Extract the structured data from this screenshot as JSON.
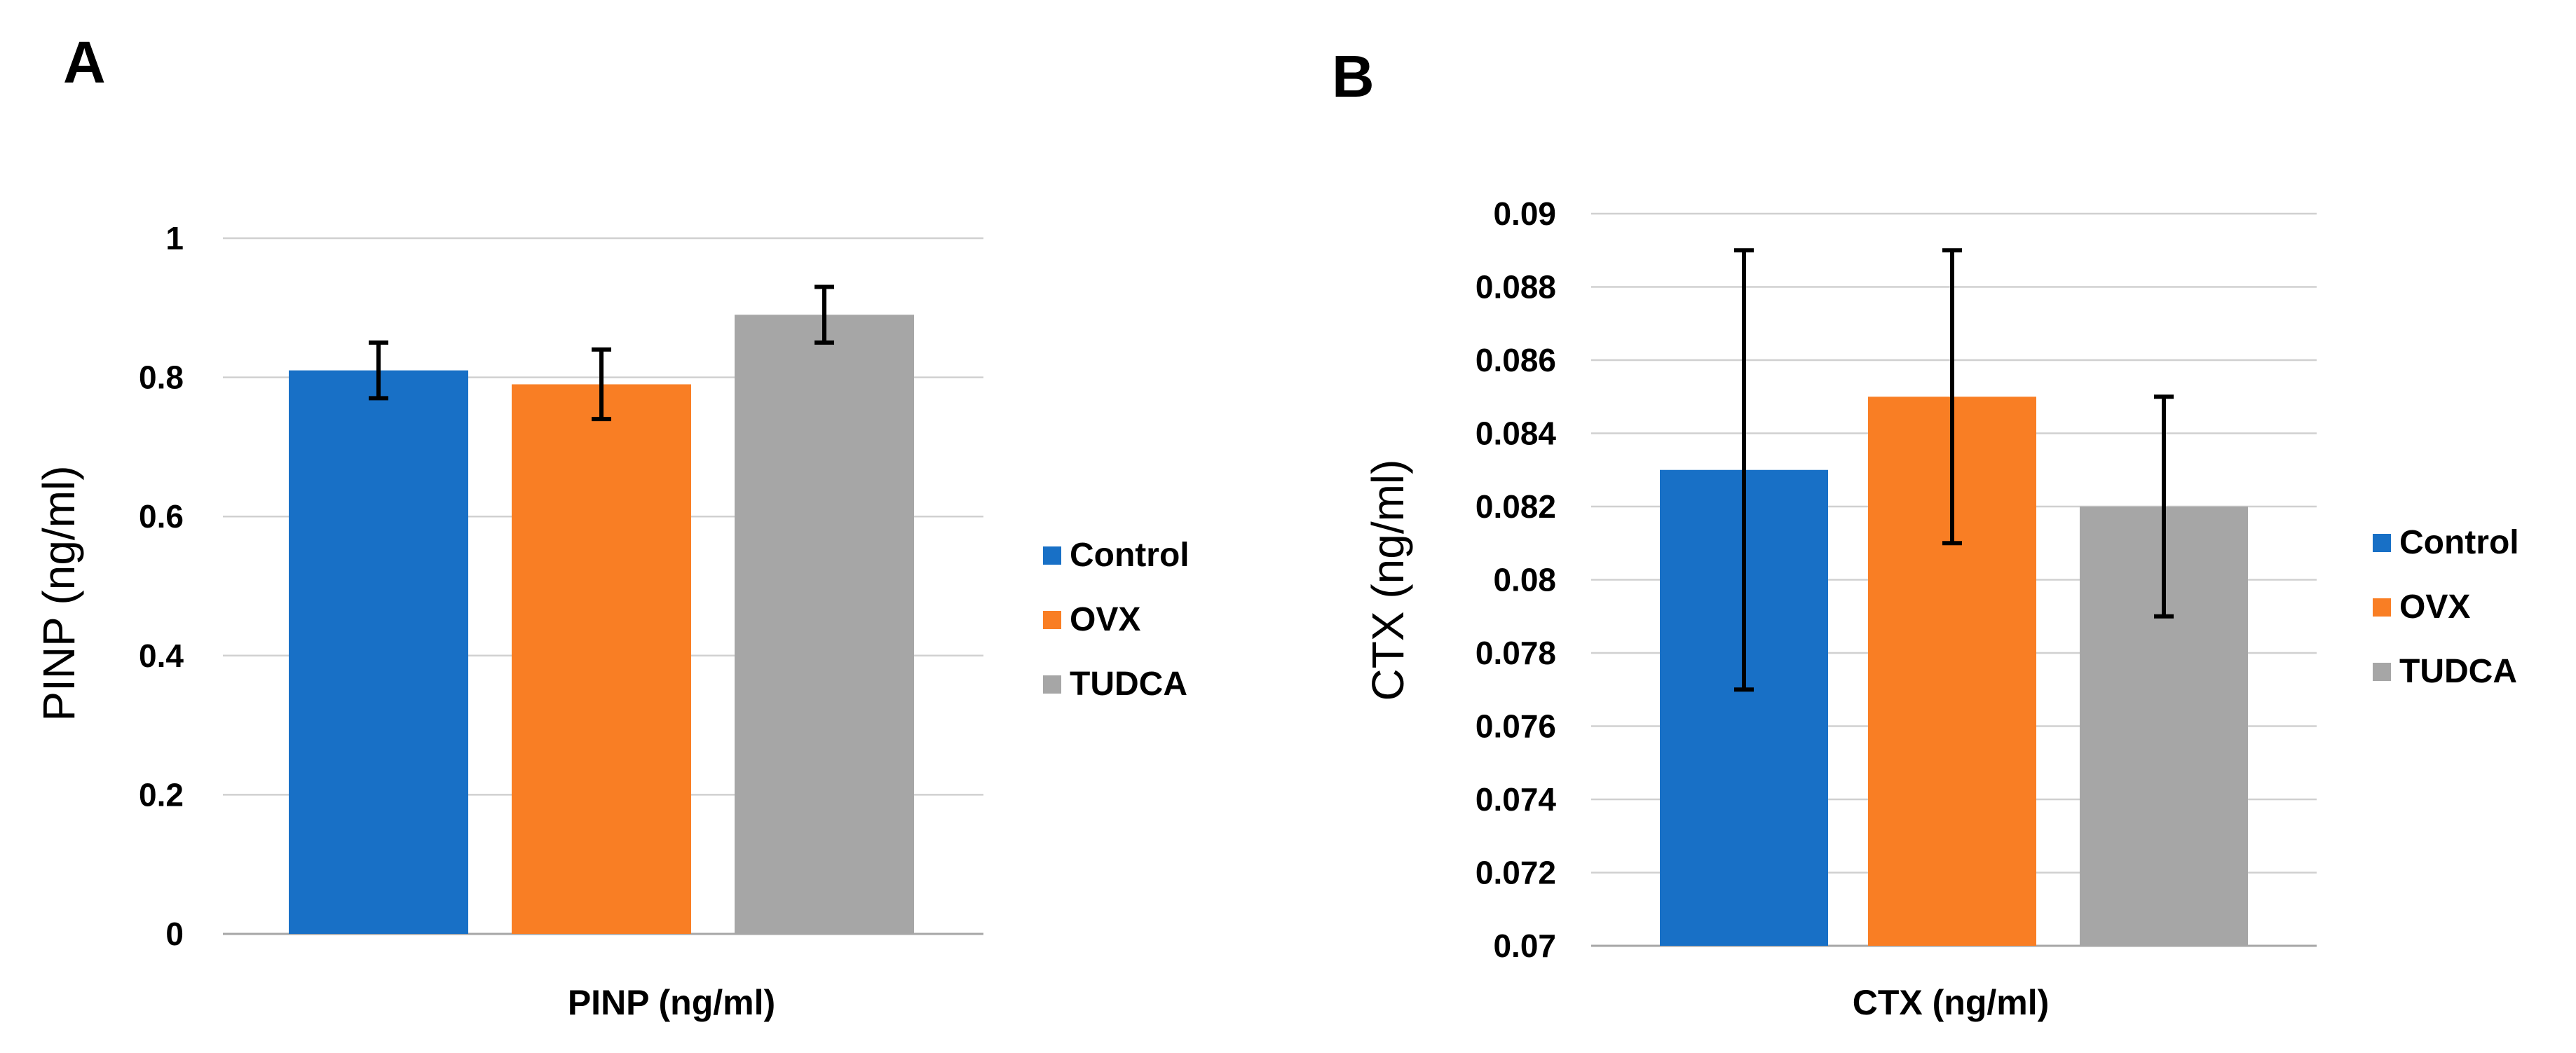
{
  "panels": [
    {
      "letter": "A",
      "chart_data": {
        "type": "bar",
        "categories": [
          "Control",
          "OVX",
          "TUDCA"
        ],
        "values": [
          0.81,
          0.79,
          0.89
        ],
        "error": [
          0.04,
          0.05,
          0.04
        ],
        "colors": [
          "#1870C6",
          "#F97E24",
          "#A6A6A6"
        ],
        "title": "",
        "xlabel": "PINP  (ng/ml)",
        "ylabel": "PINP  (ng/ml)",
        "ylim": [
          0,
          1
        ],
        "yticks": [
          0,
          0.2,
          0.4,
          0.6,
          0.8,
          1
        ],
        "ytick_labels": [
          "0",
          "0.2",
          "0.4",
          "0.6",
          "0.8",
          "1"
        ],
        "grid": true,
        "legend": [
          "Control",
          "OVX",
          "TUDCA"
        ],
        "legend_position": "right"
      }
    },
    {
      "letter": "B",
      "chart_data": {
        "type": "bar",
        "categories": [
          "Control",
          "OVX",
          "TUDCA"
        ],
        "values": [
          0.083,
          0.085,
          0.082
        ],
        "error": [
          0.006,
          0.004,
          0.003
        ],
        "colors": [
          "#1870C6",
          "#F97E24",
          "#A6A6A6"
        ],
        "title": "",
        "xlabel": "CTX (ng/ml)",
        "ylabel": "CTX (ng/ml)",
        "ylim": [
          0.07,
          0.09
        ],
        "yticks": [
          0.07,
          0.072,
          0.074,
          0.076,
          0.078,
          0.08,
          0.082,
          0.084,
          0.086,
          0.088,
          0.09
        ],
        "ytick_labels": [
          "0.07",
          "0.072",
          "0.074",
          "0.076",
          "0.078",
          "0.08",
          "0.082",
          "0.084",
          "0.086",
          "0.088",
          "0.09"
        ],
        "grid": true,
        "legend": [
          "Control",
          "OVX",
          "TUDCA"
        ],
        "legend_position": "right"
      }
    }
  ]
}
